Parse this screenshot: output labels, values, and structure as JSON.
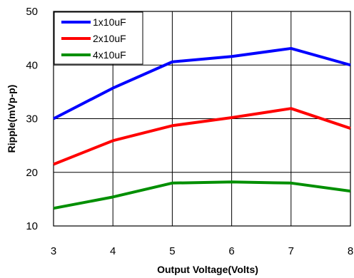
{
  "chart_data": {
    "type": "line",
    "xlabel": "Output Voltage(Volts)",
    "ylabel": "Ripple(mVp-p)",
    "x": [
      3,
      4,
      5,
      6,
      7,
      8
    ],
    "xlim": [
      3,
      8
    ],
    "ylim": [
      10,
      50
    ],
    "xticks": [
      "3",
      "4",
      "5",
      "6",
      "7",
      "8"
    ],
    "yticks": [
      "10",
      "20",
      "30",
      "40",
      "50"
    ],
    "grid": true,
    "legend": "top-left",
    "series": [
      {
        "name": "1x10uF",
        "color": "#0000ff",
        "values": [
          30.0,
          35.7,
          40.6,
          41.6,
          43.1,
          40.0
        ]
      },
      {
        "name": "2x10uF",
        "color": "#ff0000",
        "values": [
          21.5,
          25.9,
          28.7,
          30.2,
          31.9,
          28.2
        ]
      },
      {
        "name": "4x10uF",
        "color": "#008f00",
        "values": [
          13.3,
          15.4,
          18.0,
          18.2,
          18.0,
          16.5
        ]
      }
    ]
  }
}
